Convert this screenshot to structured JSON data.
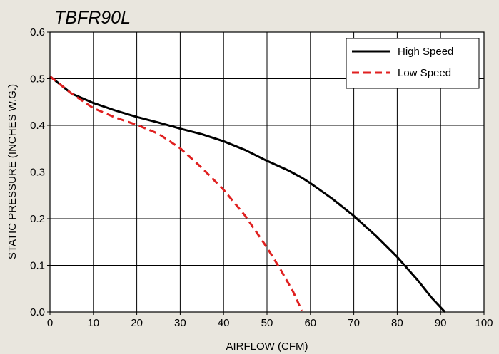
{
  "chart_data": {
    "type": "line",
    "title": "TBFR90L",
    "xlabel": "AIRFLOW (CFM)",
    "ylabel": "STATIC PRESSURE (INCHES W.G.)",
    "xlim": [
      0,
      100
    ],
    "ylim": [
      0,
      0.6
    ],
    "x_ticks": [
      0,
      10,
      20,
      30,
      40,
      50,
      60,
      70,
      80,
      90,
      100
    ],
    "y_ticks": [
      0.0,
      0.1,
      0.2,
      0.3,
      0.4,
      0.5,
      0.6
    ],
    "x_tick_labels": [
      "0",
      "10",
      "20",
      "30",
      "40",
      "50",
      "60",
      "70",
      "80",
      "90",
      "100"
    ],
    "y_tick_labels": [
      "0.0",
      "0.1",
      "0.2",
      "0.3",
      "0.4",
      "0.5",
      "0.6"
    ],
    "grid": true,
    "legend_position": "top-right",
    "colors": {
      "background": "#e9e6de",
      "plot_area": "#ffffff",
      "grid": "#000000"
    },
    "series": [
      {
        "name": "High Speed",
        "color": "#000000",
        "dash": "solid",
        "points": [
          [
            0,
            0.505
          ],
          [
            5,
            0.468
          ],
          [
            10,
            0.448
          ],
          [
            15,
            0.432
          ],
          [
            20,
            0.418
          ],
          [
            25,
            0.406
          ],
          [
            30,
            0.393
          ],
          [
            35,
            0.381
          ],
          [
            40,
            0.366
          ],
          [
            45,
            0.347
          ],
          [
            50,
            0.324
          ],
          [
            55,
            0.303
          ],
          [
            58,
            0.288
          ],
          [
            60,
            0.276
          ],
          [
            65,
            0.243
          ],
          [
            70,
            0.206
          ],
          [
            75,
            0.164
          ],
          [
            80,
            0.118
          ],
          [
            85,
            0.065
          ],
          [
            88,
            0.03
          ],
          [
            91,
            0.0
          ]
        ]
      },
      {
        "name": "Low Speed",
        "color": "#e02020",
        "dash": "dashed",
        "points": [
          [
            0,
            0.505
          ],
          [
            5,
            0.468
          ],
          [
            10,
            0.437
          ],
          [
            15,
            0.417
          ],
          [
            20,
            0.401
          ],
          [
            25,
            0.382
          ],
          [
            30,
            0.351
          ],
          [
            35,
            0.309
          ],
          [
            40,
            0.262
          ],
          [
            45,
            0.206
          ],
          [
            50,
            0.138
          ],
          [
            53,
            0.093
          ],
          [
            56,
            0.044
          ],
          [
            58,
            0.003
          ]
        ]
      }
    ]
  }
}
